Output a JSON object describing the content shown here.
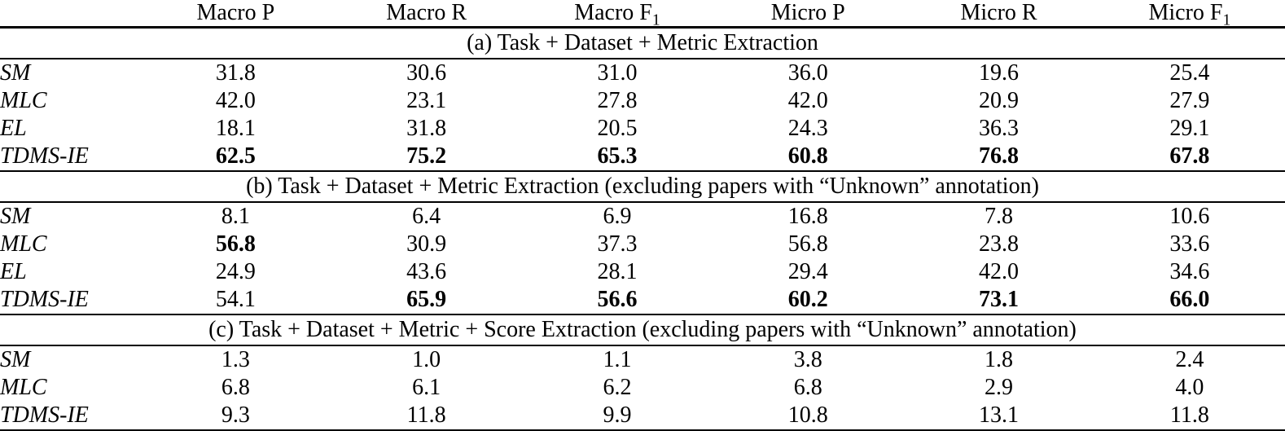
{
  "table": {
    "colors": {
      "text": "#000000",
      "background": "#ffffff",
      "rule": "#000000"
    },
    "header": {
      "row_label_column": "",
      "columns": [
        {
          "label": "Macro P",
          "sub": ""
        },
        {
          "label": "Macro R",
          "sub": ""
        },
        {
          "label": "Macro F",
          "sub": "1"
        },
        {
          "label": "Micro P",
          "sub": ""
        },
        {
          "label": "Micro R",
          "sub": ""
        },
        {
          "label": "Micro F",
          "sub": "1"
        }
      ]
    },
    "sections": [
      {
        "title": "(a) Task + Dataset + Metric Extraction",
        "rows": [
          {
            "label": "SM",
            "values": [
              "31.8",
              "30.6",
              "31.0",
              "36.0",
              "19.6",
              "25.4"
            ],
            "bold": [
              false,
              false,
              false,
              false,
              false,
              false
            ]
          },
          {
            "label": "MLC",
            "values": [
              "42.0",
              "23.1",
              "27.8",
              "42.0",
              "20.9",
              "27.9"
            ],
            "bold": [
              false,
              false,
              false,
              false,
              false,
              false
            ]
          },
          {
            "label": "EL",
            "values": [
              "18.1",
              "31.8",
              "20.5",
              "24.3",
              "36.3",
              "29.1"
            ],
            "bold": [
              false,
              false,
              false,
              false,
              false,
              false
            ]
          },
          {
            "label": "TDMS-IE",
            "values": [
              "62.5",
              "75.2",
              "65.3",
              "60.8",
              "76.8",
              "67.8"
            ],
            "bold": [
              true,
              true,
              true,
              true,
              true,
              true
            ]
          }
        ]
      },
      {
        "title": "(b) Task + Dataset + Metric Extraction (excluding papers with “Unknown” annotation)",
        "rows": [
          {
            "label": "SM",
            "values": [
              "8.1",
              "6.4",
              "6.9",
              "16.8",
              "7.8",
              "10.6"
            ],
            "bold": [
              false,
              false,
              false,
              false,
              false,
              false
            ]
          },
          {
            "label": "MLC",
            "values": [
              "56.8",
              "30.9",
              "37.3",
              "56.8",
              "23.8",
              "33.6"
            ],
            "bold": [
              true,
              false,
              false,
              false,
              false,
              false
            ]
          },
          {
            "label": "EL",
            "values": [
              "24.9",
              "43.6",
              "28.1",
              "29.4",
              "42.0",
              "34.6"
            ],
            "bold": [
              false,
              false,
              false,
              false,
              false,
              false
            ]
          },
          {
            "label": "TDMS-IE",
            "values": [
              "54.1",
              "65.9",
              "56.6",
              "60.2",
              "73.1",
              "66.0"
            ],
            "bold": [
              false,
              true,
              true,
              true,
              true,
              true
            ]
          }
        ]
      },
      {
        "title": "(c) Task + Dataset + Metric + Score Extraction (excluding papers with “Unknown” annotation)",
        "rows": [
          {
            "label": "SM",
            "values": [
              "1.3",
              "1.0",
              "1.1",
              "3.8",
              "1.8",
              "2.4"
            ],
            "bold": [
              false,
              false,
              false,
              false,
              false,
              false
            ]
          },
          {
            "label": "MLC",
            "values": [
              "6.8",
              "6.1",
              "6.2",
              "6.8",
              "2.9",
              "4.0"
            ],
            "bold": [
              false,
              false,
              false,
              false,
              false,
              false
            ]
          },
          {
            "label": "TDMS-IE",
            "values": [
              "9.3",
              "11.8",
              "9.9",
              "10.8",
              "13.1",
              "11.8"
            ],
            "bold": [
              false,
              false,
              false,
              false,
              false,
              false
            ]
          }
        ]
      }
    ]
  }
}
